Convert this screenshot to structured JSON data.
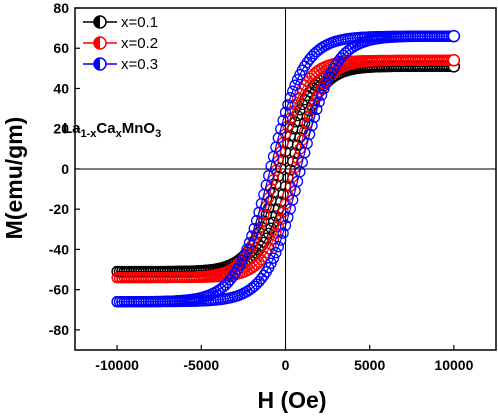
{
  "chart_data": {
    "type": "line",
    "title": "",
    "xlabel": "H (Oe)",
    "ylabel": "M(emu/gm)",
    "xlim": [
      -12500,
      12500
    ],
    "ylim": [
      -90,
      80
    ],
    "xticks": [
      -10000,
      -5000,
      0,
      5000,
      10000
    ],
    "xtick_labels": [
      "-10000",
      "-5000",
      "0",
      "5000",
      "10000"
    ],
    "yticks": [
      -80,
      -60,
      -40,
      -20,
      0,
      20,
      40,
      60,
      80
    ],
    "ytick_labels": [
      "-80",
      "-60",
      "-40",
      "-20",
      "0",
      "20",
      "40",
      "60",
      "80"
    ],
    "reference_lines": {
      "x": 0,
      "y": 0
    },
    "grid": false,
    "legend_position": "top-left",
    "annotation": {
      "main": "La",
      "sub1": "1-x",
      "mid": "Ca",
      "sub2": "x",
      "tail": "MnO",
      "sub3": "3"
    },
    "series": [
      {
        "name": "x=0.1",
        "color": "#000000",
        "Ms": 51,
        "Hc": 300,
        "scale": 800,
        "H_max": 10000
      },
      {
        "name": "x=0.2",
        "color": "#ff0000",
        "Ms": 54,
        "Hc": 550,
        "scale": 750,
        "H_max": 10000
      },
      {
        "name": "x=0.3",
        "color": "#0000ff",
        "Ms": 66,
        "Hc": 900,
        "scale": 900,
        "H_max": 10000
      }
    ]
  }
}
